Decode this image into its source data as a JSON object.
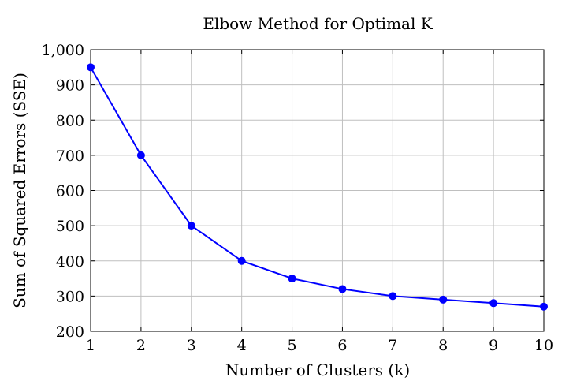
{
  "chart_data": {
    "type": "line",
    "title": "Elbow Method for Optimal K",
    "xlabel": "Number of Clusters (k)",
    "ylabel": "Sum of Squared Errors (SSE)",
    "x": [
      1,
      2,
      3,
      4,
      5,
      6,
      7,
      8,
      9,
      10
    ],
    "series": [
      {
        "values": [
          950,
          700,
          500,
          400,
          350,
          320,
          300,
          290,
          280,
          270
        ],
        "color": "#0000ff"
      }
    ],
    "xlim": [
      1,
      10
    ],
    "ylim": [
      200,
      1000
    ],
    "x_ticks": [
      1,
      2,
      3,
      4,
      5,
      6,
      7,
      8,
      9,
      10
    ],
    "x_tick_labels": [
      "1",
      "2",
      "3",
      "4",
      "5",
      "6",
      "7",
      "8",
      "9",
      "10"
    ],
    "y_ticks": [
      200,
      300,
      400,
      500,
      600,
      700,
      800,
      900,
      1000
    ],
    "y_tick_labels": [
      "200",
      "300",
      "400",
      "500",
      "600",
      "700",
      "800",
      "900",
      "1,000"
    ],
    "grid": true,
    "marker": "circle"
  }
}
